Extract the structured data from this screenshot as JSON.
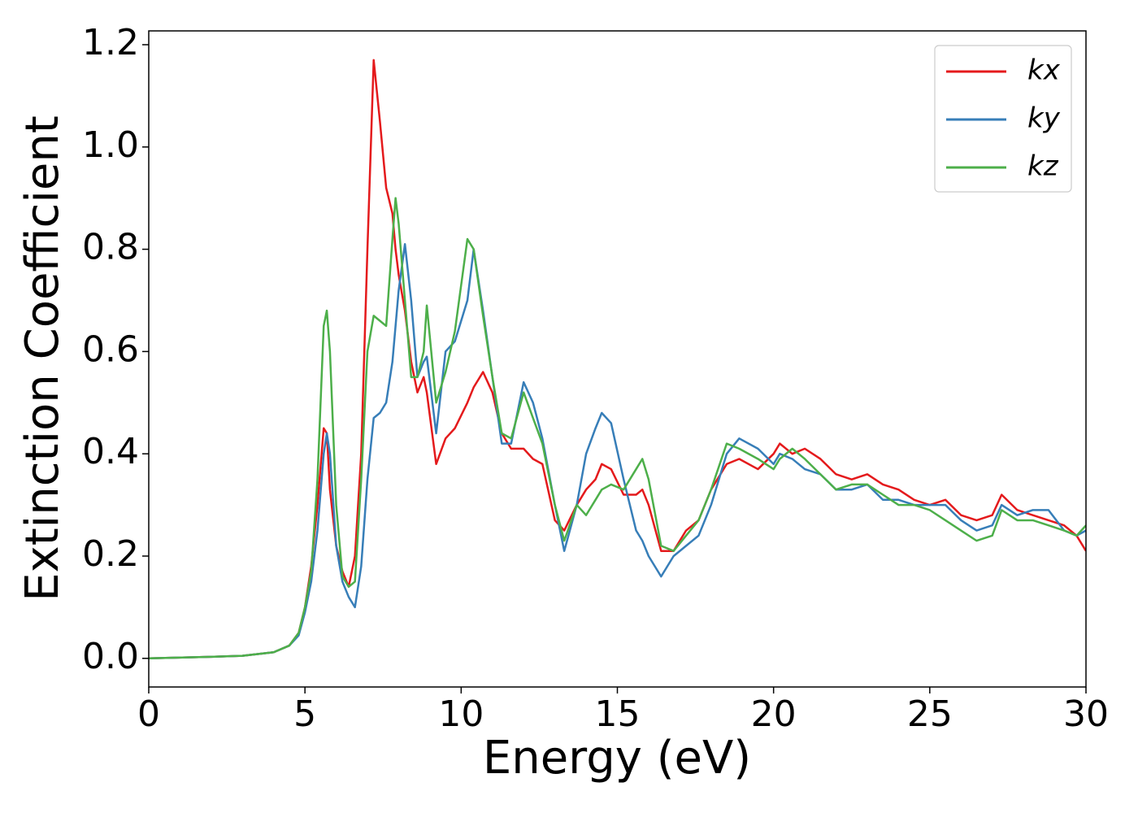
{
  "chart_data": {
    "type": "line",
    "xlabel": "Energy (eV)",
    "ylabel": "Extinction Coefficient",
    "x": [
      0,
      2,
      3,
      4,
      4.5,
      4.8,
      5.0,
      5.2,
      5.4,
      5.6,
      5.7,
      5.8,
      6.0,
      6.2,
      6.4,
      6.6,
      6.8,
      7.0,
      7.2,
      7.4,
      7.6,
      7.8,
      7.9,
      8.0,
      8.2,
      8.4,
      8.6,
      8.8,
      8.9,
      9.2,
      9.5,
      9.8,
      10.2,
      10.4,
      10.7,
      11.0,
      11.3,
      11.6,
      12.0,
      12.3,
      12.6,
      13.0,
      13.3,
      13.7,
      14.0,
      14.3,
      14.5,
      14.8,
      15.2,
      15.6,
      15.8,
      16.0,
      16.4,
      16.8,
      17.2,
      17.6,
      18.0,
      18.5,
      18.9,
      19.5,
      20.0,
      20.2,
      20.6,
      21.0,
      21.5,
      22.0,
      22.5,
      23.0,
      23.5,
      24.0,
      24.5,
      25.0,
      25.5,
      26.0,
      26.5,
      27.0,
      27.3,
      27.8,
      28.3,
      28.8,
      29.3,
      29.7,
      30.0
    ],
    "series": [
      {
        "name": "kx",
        "color": "#e41a1c",
        "values": [
          0,
          0.003,
          0.005,
          0.012,
          0.025,
          0.05,
          0.1,
          0.18,
          0.3,
          0.45,
          0.44,
          0.33,
          0.22,
          0.17,
          0.14,
          0.2,
          0.4,
          0.8,
          1.17,
          1.05,
          0.92,
          0.87,
          0.8,
          0.75,
          0.68,
          0.58,
          0.52,
          0.55,
          0.52,
          0.38,
          0.43,
          0.45,
          0.5,
          0.53,
          0.56,
          0.52,
          0.44,
          0.41,
          0.41,
          0.39,
          0.38,
          0.27,
          0.25,
          0.3,
          0.33,
          0.35,
          0.38,
          0.37,
          0.32,
          0.32,
          0.33,
          0.3,
          0.21,
          0.21,
          0.25,
          0.27,
          0.33,
          0.38,
          0.39,
          0.37,
          0.4,
          0.42,
          0.4,
          0.41,
          0.39,
          0.36,
          0.35,
          0.36,
          0.34,
          0.33,
          0.31,
          0.3,
          0.31,
          0.28,
          0.27,
          0.28,
          0.32,
          0.29,
          0.28,
          0.27,
          0.26,
          0.24,
          0.21
        ]
      },
      {
        "name": "ky",
        "color": "#377eb8",
        "values": [
          0,
          0.003,
          0.005,
          0.012,
          0.025,
          0.045,
          0.09,
          0.15,
          0.25,
          0.4,
          0.44,
          0.4,
          0.22,
          0.15,
          0.12,
          0.1,
          0.18,
          0.35,
          0.47,
          0.48,
          0.5,
          0.58,
          0.65,
          0.72,
          0.81,
          0.7,
          0.55,
          0.58,
          0.59,
          0.44,
          0.6,
          0.62,
          0.7,
          0.8,
          0.68,
          0.55,
          0.42,
          0.42,
          0.54,
          0.5,
          0.43,
          0.3,
          0.21,
          0.3,
          0.4,
          0.45,
          0.48,
          0.46,
          0.35,
          0.25,
          0.23,
          0.2,
          0.16,
          0.2,
          0.22,
          0.24,
          0.3,
          0.4,
          0.43,
          0.41,
          0.38,
          0.4,
          0.39,
          0.37,
          0.36,
          0.33,
          0.33,
          0.34,
          0.31,
          0.31,
          0.3,
          0.3,
          0.3,
          0.27,
          0.25,
          0.26,
          0.3,
          0.28,
          0.29,
          0.29,
          0.25,
          0.24,
          0.25
        ]
      },
      {
        "name": "kz",
        "color": "#4daf4a",
        "values": [
          0,
          0.003,
          0.005,
          0.012,
          0.025,
          0.05,
          0.1,
          0.17,
          0.35,
          0.65,
          0.68,
          0.6,
          0.3,
          0.16,
          0.14,
          0.15,
          0.35,
          0.6,
          0.67,
          0.66,
          0.65,
          0.82,
          0.9,
          0.85,
          0.7,
          0.55,
          0.55,
          0.6,
          0.69,
          0.5,
          0.56,
          0.64,
          0.82,
          0.8,
          0.67,
          0.55,
          0.44,
          0.43,
          0.52,
          0.47,
          0.42,
          0.3,
          0.23,
          0.3,
          0.28,
          0.31,
          0.33,
          0.34,
          0.33,
          0.37,
          0.39,
          0.35,
          0.22,
          0.21,
          0.24,
          0.27,
          0.33,
          0.42,
          0.41,
          0.39,
          0.37,
          0.39,
          0.41,
          0.39,
          0.36,
          0.33,
          0.34,
          0.34,
          0.32,
          0.3,
          0.3,
          0.29,
          0.27,
          0.25,
          0.23,
          0.24,
          0.29,
          0.27,
          0.27,
          0.26,
          0.25,
          0.24,
          0.26
        ]
      }
    ],
    "xlim": [
      0,
      30
    ],
    "xticks": [
      0,
      5,
      10,
      15,
      20,
      25,
      30
    ],
    "ylim": [
      -0.056,
      1.227
    ],
    "yticks": [
      {
        "value": 0,
        "label": "0.0"
      },
      0.2,
      0.4,
      0.6,
      0.8,
      {
        "value": 1,
        "label": "1.0"
      },
      1.2
    ],
    "grid": false,
    "legend": "upper right"
  }
}
